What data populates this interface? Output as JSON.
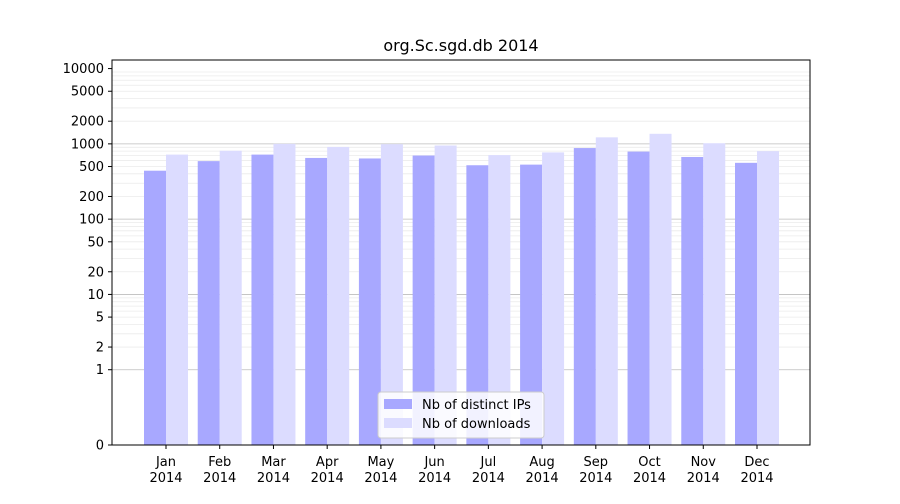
{
  "chart_data": {
    "type": "bar",
    "title": "org.Sc.sgd.db 2014",
    "xlabel": "",
    "ylabel": "",
    "y_scale": "symlog",
    "ylim": [
      0,
      13000
    ],
    "y_ticks": [
      0,
      1,
      2,
      5,
      10,
      20,
      50,
      100,
      200,
      500,
      1000,
      2000,
      5000,
      10000
    ],
    "y_tick_labels": [
      "0",
      "1",
      "2",
      "5",
      "10",
      "20",
      "50",
      "100",
      "200",
      "500",
      "1000",
      "2000",
      "5000",
      "10000"
    ],
    "categories": [
      "Jan",
      "Feb",
      "Mar",
      "Apr",
      "May",
      "Jun",
      "Jul",
      "Aug",
      "Sep",
      "Oct",
      "Nov",
      "Dec"
    ],
    "category_sublabel": "2014",
    "series": [
      {
        "name": "Nb of distinct IPs",
        "color": "#a8a8ff",
        "values": [
          440,
          590,
          720,
          650,
          640,
          700,
          520,
          530,
          880,
          790,
          670,
          560
        ]
      },
      {
        "name": "Nb of downloads",
        "color": "#dcdcff",
        "values": [
          720,
          810,
          1000,
          910,
          990,
          950,
          710,
          770,
          1220,
          1360,
          1020,
          800
        ]
      }
    ],
    "grid": true,
    "legend_position": "bottom-center"
  }
}
